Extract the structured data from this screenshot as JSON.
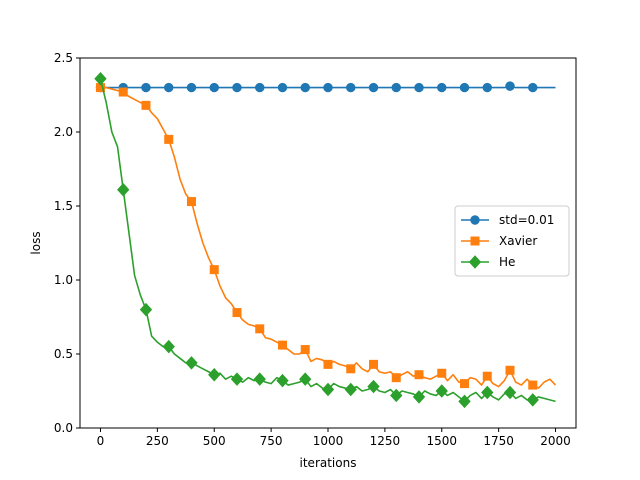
{
  "chart_data": {
    "type": "line",
    "title": "",
    "xlabel": "iterations",
    "ylabel": "loss",
    "xlim": [
      -90,
      2090
    ],
    "ylim": [
      0.0,
      2.5
    ],
    "x_ticks": [
      0,
      250,
      500,
      750,
      1000,
      1250,
      1500,
      1750,
      2000
    ],
    "x_tick_labels": [
      "0",
      "250",
      "500",
      "750",
      "1000",
      "1250",
      "1500",
      "1750",
      "2000"
    ],
    "y_ticks": [
      0.0,
      0.5,
      1.0,
      1.5,
      2.0,
      2.5
    ],
    "y_tick_labels": [
      "0.0",
      "0.5",
      "1.0",
      "1.5",
      "2.0",
      "2.5"
    ],
    "grid": false,
    "legend_position": "center-right",
    "x": [
      0,
      25,
      50,
      75,
      100,
      125,
      150,
      175,
      200,
      225,
      250,
      275,
      300,
      325,
      350,
      375,
      400,
      425,
      450,
      475,
      500,
      525,
      550,
      575,
      600,
      625,
      650,
      675,
      700,
      725,
      750,
      775,
      800,
      825,
      850,
      875,
      900,
      925,
      950,
      975,
      1000,
      1025,
      1050,
      1075,
      1100,
      1125,
      1150,
      1175,
      1200,
      1225,
      1250,
      1275,
      1300,
      1325,
      1350,
      1375,
      1400,
      1425,
      1450,
      1475,
      1500,
      1525,
      1550,
      1575,
      1600,
      1625,
      1650,
      1675,
      1700,
      1725,
      1750,
      1775,
      1800,
      1825,
      1850,
      1875,
      1900,
      1925,
      1950,
      1975,
      2000
    ],
    "series": [
      {
        "name": "std=0.01",
        "color": "#1f77b4",
        "marker": "circle",
        "values": [
          2.3,
          2.3,
          2.3,
          2.3,
          2.3,
          2.3,
          2.3,
          2.3,
          2.3,
          2.3,
          2.3,
          2.3,
          2.3,
          2.3,
          2.3,
          2.3,
          2.3,
          2.3,
          2.3,
          2.3,
          2.3,
          2.3,
          2.3,
          2.3,
          2.3,
          2.3,
          2.3,
          2.3,
          2.3,
          2.3,
          2.3,
          2.3,
          2.3,
          2.3,
          2.3,
          2.3,
          2.3,
          2.3,
          2.3,
          2.3,
          2.3,
          2.3,
          2.3,
          2.3,
          2.3,
          2.3,
          2.3,
          2.3,
          2.3,
          2.3,
          2.3,
          2.3,
          2.3,
          2.3,
          2.3,
          2.3,
          2.3,
          2.3,
          2.3,
          2.3,
          2.3,
          2.3,
          2.3,
          2.3,
          2.3,
          2.3,
          2.3,
          2.3,
          2.3,
          2.3,
          2.3,
          2.3,
          2.31,
          2.3,
          2.3,
          2.3,
          2.3,
          2.3,
          2.3,
          2.3,
          2.3
        ]
      },
      {
        "name": "Xavier",
        "color": "#ff7f0e",
        "marker": "square",
        "values": [
          2.3,
          2.3,
          2.29,
          2.28,
          2.27,
          2.24,
          2.22,
          2.2,
          2.18,
          2.13,
          2.09,
          2.02,
          1.95,
          1.83,
          1.68,
          1.58,
          1.53,
          1.38,
          1.25,
          1.15,
          1.07,
          0.96,
          0.88,
          0.84,
          0.78,
          0.73,
          0.7,
          0.69,
          0.67,
          0.61,
          0.6,
          0.58,
          0.56,
          0.53,
          0.5,
          0.5,
          0.53,
          0.45,
          0.47,
          0.46,
          0.43,
          0.45,
          0.43,
          0.42,
          0.4,
          0.44,
          0.4,
          0.38,
          0.43,
          0.38,
          0.37,
          0.38,
          0.34,
          0.36,
          0.38,
          0.35,
          0.36,
          0.34,
          0.33,
          0.35,
          0.37,
          0.32,
          0.36,
          0.31,
          0.3,
          0.34,
          0.33,
          0.29,
          0.35,
          0.3,
          0.28,
          0.32,
          0.39,
          0.31,
          0.29,
          0.33,
          0.29,
          0.27,
          0.31,
          0.33,
          0.29
        ]
      },
      {
        "name": "He",
        "color": "#2ca02c",
        "marker": "diamond",
        "values": [
          2.36,
          2.2,
          2.0,
          1.9,
          1.61,
          1.32,
          1.03,
          0.9,
          0.8,
          0.62,
          0.58,
          0.55,
          0.55,
          0.5,
          0.47,
          0.44,
          0.44,
          0.42,
          0.4,
          0.38,
          0.36,
          0.37,
          0.33,
          0.35,
          0.33,
          0.31,
          0.34,
          0.32,
          0.33,
          0.31,
          0.3,
          0.34,
          0.32,
          0.29,
          0.3,
          0.31,
          0.33,
          0.28,
          0.3,
          0.27,
          0.26,
          0.3,
          0.28,
          0.27,
          0.26,
          0.28,
          0.25,
          0.26,
          0.28,
          0.25,
          0.24,
          0.26,
          0.22,
          0.25,
          0.24,
          0.23,
          0.21,
          0.25,
          0.23,
          0.22,
          0.25,
          0.22,
          0.24,
          0.21,
          0.18,
          0.22,
          0.24,
          0.2,
          0.24,
          0.21,
          0.19,
          0.23,
          0.24,
          0.2,
          0.22,
          0.19,
          0.19,
          0.21,
          0.2,
          0.19,
          0.18
        ]
      }
    ]
  }
}
